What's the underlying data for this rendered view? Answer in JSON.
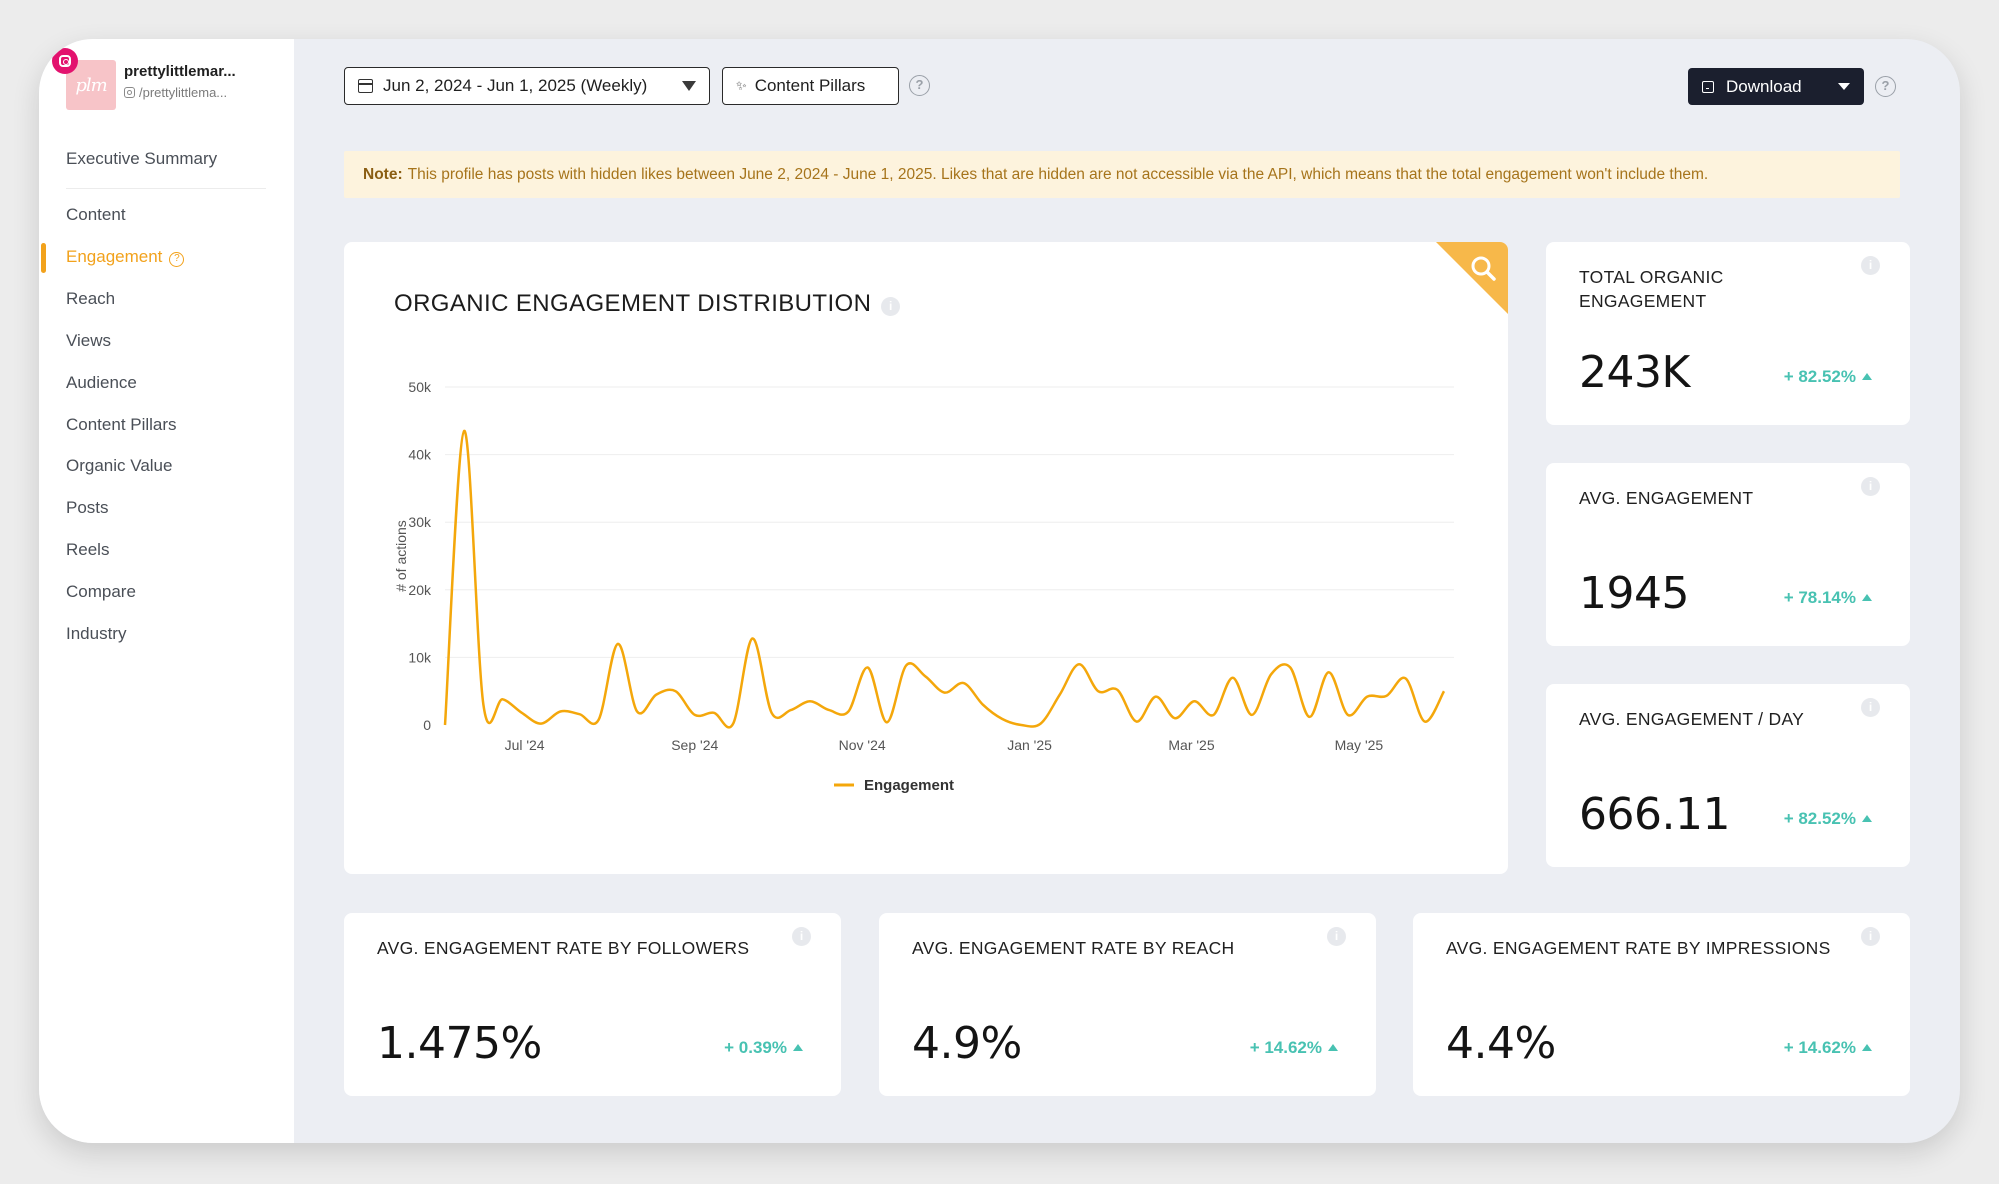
{
  "profile": {
    "name": "prettylittlemar...",
    "handle": "/prettylittlema...",
    "avatar_text": "plm"
  },
  "sidebar": {
    "items": [
      {
        "label": "Executive Summary",
        "active": false
      },
      {
        "label": "Content",
        "active": false
      },
      {
        "label": "Engagement",
        "active": true
      },
      {
        "label": "Reach",
        "active": false
      },
      {
        "label": "Views",
        "active": false
      },
      {
        "label": "Audience",
        "active": false
      },
      {
        "label": "Content Pillars",
        "active": false
      },
      {
        "label": "Organic Value",
        "active": false
      },
      {
        "label": "Posts",
        "active": false
      },
      {
        "label": "Reels",
        "active": false
      },
      {
        "label": "Compare",
        "active": false
      },
      {
        "label": "Industry",
        "active": false
      }
    ]
  },
  "toolbar": {
    "date_range": "Jun 2, 2024 - Jun 1, 2025 (Weekly)",
    "content_pillars": "Content Pillars",
    "download": "Download",
    "help_glyph": "?"
  },
  "note": {
    "prefix": "Note:",
    "text": "This profile has posts with hidden likes between June 2, 2024 - June 1, 2025. Likes that are hidden are not accessible via the API, which means that the total engagement won't include them."
  },
  "chart_card": {
    "title": "ORGANIC ENGAGEMENT DISTRIBUTION",
    "info_glyph": "i"
  },
  "chart_data": {
    "type": "line",
    "title": "ORGANIC ENGAGEMENT DISTRIBUTION",
    "ylabel": "# of actions",
    "xlabel": "",
    "ylim": [
      0,
      50000
    ],
    "yticks": [
      0,
      10000,
      20000,
      30000,
      40000,
      50000
    ],
    "ytick_labels": [
      "0",
      "10k",
      "20k",
      "30k",
      "40k",
      "50k"
    ],
    "xticks": [
      {
        "label": "Jul '24",
        "date": "2024-07-01"
      },
      {
        "label": "Sep '24",
        "date": "2024-09-01"
      },
      {
        "label": "Nov '24",
        "date": "2024-11-01"
      },
      {
        "label": "Jan '25",
        "date": "2025-01-01"
      },
      {
        "label": "Mar '25",
        "date": "2025-03-01"
      },
      {
        "label": "May '25",
        "date": "2025-05-01"
      }
    ],
    "legend": "bottom",
    "grid": true,
    "series": [
      {
        "name": "Engagement",
        "color": "#f4a70b",
        "points": [
          [
            "2024-06-02",
            0
          ],
          [
            "2024-06-09",
            43500
          ],
          [
            "2024-06-16",
            3000
          ],
          [
            "2024-06-23",
            3800
          ],
          [
            "2024-06-30",
            1800
          ],
          [
            "2024-07-07",
            200
          ],
          [
            "2024-07-14",
            2000
          ],
          [
            "2024-07-21",
            1600
          ],
          [
            "2024-07-28",
            800
          ],
          [
            "2024-08-04",
            12000
          ],
          [
            "2024-08-11",
            2000
          ],
          [
            "2024-08-18",
            4500
          ],
          [
            "2024-08-25",
            5000
          ],
          [
            "2024-09-01",
            1500
          ],
          [
            "2024-09-08",
            1800
          ],
          [
            "2024-09-15",
            200
          ],
          [
            "2024-09-22",
            12800
          ],
          [
            "2024-09-29",
            1800
          ],
          [
            "2024-10-06",
            2200
          ],
          [
            "2024-10-13",
            3500
          ],
          [
            "2024-10-20",
            2200
          ],
          [
            "2024-10-27",
            2000
          ],
          [
            "2024-11-03",
            8500
          ],
          [
            "2024-11-10",
            400
          ],
          [
            "2024-11-17",
            8800
          ],
          [
            "2024-11-24",
            7200
          ],
          [
            "2024-12-01",
            4800
          ],
          [
            "2024-12-08",
            6200
          ],
          [
            "2024-12-15",
            3000
          ],
          [
            "2024-12-22",
            900
          ],
          [
            "2024-12-29",
            0
          ],
          [
            "2025-01-05",
            200
          ],
          [
            "2025-01-12",
            4500
          ],
          [
            "2025-01-19",
            9000
          ],
          [
            "2025-01-26",
            5000
          ],
          [
            "2025-02-02",
            5200
          ],
          [
            "2025-02-09",
            500
          ],
          [
            "2025-02-16",
            4200
          ],
          [
            "2025-02-23",
            1000
          ],
          [
            "2025-03-02",
            3500
          ],
          [
            "2025-03-09",
            1500
          ],
          [
            "2025-03-16",
            7000
          ],
          [
            "2025-03-23",
            1500
          ],
          [
            "2025-03-30",
            7500
          ],
          [
            "2025-04-06",
            8500
          ],
          [
            "2025-04-13",
            1200
          ],
          [
            "2025-04-20",
            7800
          ],
          [
            "2025-04-27",
            1500
          ],
          [
            "2025-05-04",
            4200
          ],
          [
            "2025-05-11",
            4300
          ],
          [
            "2025-05-18",
            6900
          ],
          [
            "2025-05-25",
            500
          ],
          [
            "2025-06-01",
            5000
          ]
        ]
      }
    ]
  },
  "kpis_side": [
    {
      "label": "TOTAL ORGANIC ENGAGEMENT",
      "value": "243K",
      "delta": "+ 82.52%"
    },
    {
      "label": "AVG. ENGAGEMENT",
      "value": "1945",
      "delta": "+ 78.14%"
    },
    {
      "label": "AVG. ENGAGEMENT / DAY",
      "value": "666.11",
      "delta": "+ 82.52%"
    }
  ],
  "kpis_bottom": [
    {
      "label": "AVG. ENGAGEMENT RATE BY FOLLOWERS",
      "value": "1.475%",
      "delta": "+ 0.39%"
    },
    {
      "label": "AVG. ENGAGEMENT RATE BY REACH",
      "value": "4.9%",
      "delta": "+ 14.62%"
    },
    {
      "label": "AVG. ENGAGEMENT RATE BY IMPRESSIONS",
      "value": "4.4%",
      "delta": "+ 14.62%"
    }
  ],
  "colors": {
    "accent": "#f2a21c",
    "line": "#f4a70b",
    "positive": "#48c2b2",
    "download_bg": "#1b1f2e",
    "note_bg": "#fdf3dd"
  }
}
